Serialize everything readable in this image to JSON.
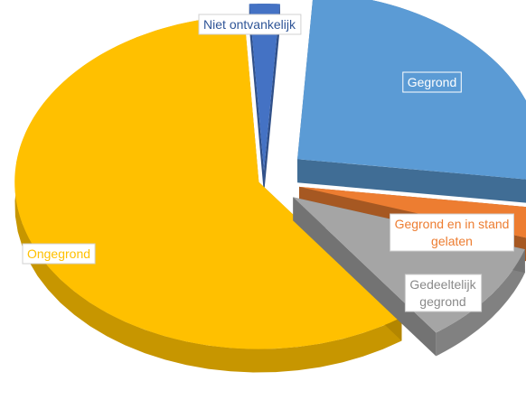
{
  "chart_data": {
    "type": "pie",
    "style": "3d-exploded",
    "legend": "none",
    "slices": [
      {
        "label": "Niet ontvankelijk",
        "value": 2,
        "color": "#4472C4"
      },
      {
        "label": "Gegrond",
        "value": 26,
        "color": "#5B9BD5"
      },
      {
        "label": "Gegrond en in stand gelaten",
        "value": 3,
        "color": "#ED7D31"
      },
      {
        "label": "Gedeeltelijk gegrond",
        "value": 10,
        "color": "#A5A5A5"
      },
      {
        "label": "Ongegrond",
        "value": 59,
        "color": "#FFC000"
      }
    ]
  }
}
